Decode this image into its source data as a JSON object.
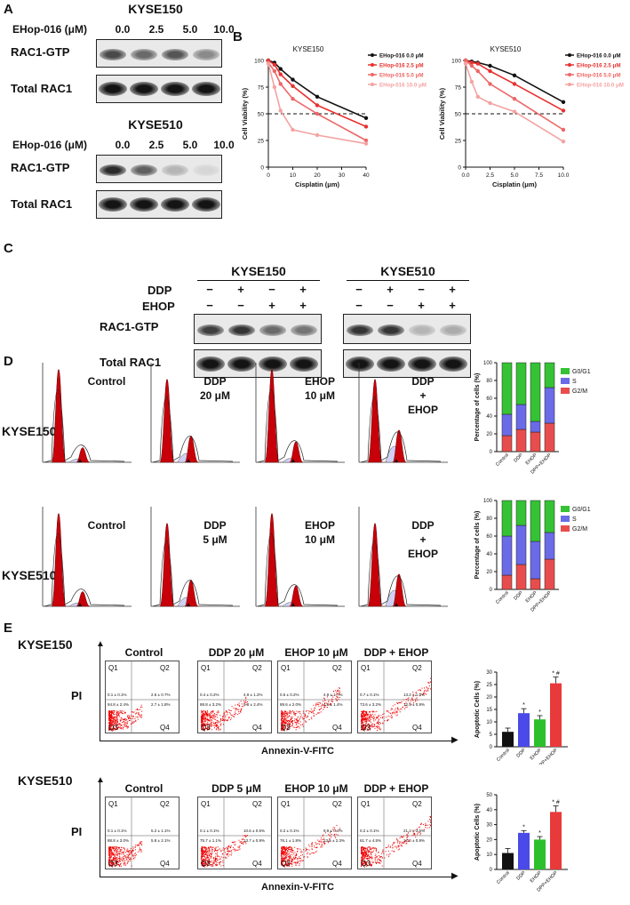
{
  "panels": {
    "A": "A",
    "B": "B",
    "C": "C",
    "D": "D",
    "E": "E"
  },
  "panelA": {
    "kyse150": {
      "title": "KYSE150",
      "dose_label": "EHop-016 (μM)",
      "doses": [
        "0.0",
        "2.5",
        "5.0",
        "10.0"
      ],
      "rows": [
        "RAC1-GTP",
        "Total RAC1"
      ],
      "gtp_intensity": [
        0.75,
        0.6,
        0.7,
        0.45
      ],
      "total_intensity": [
        1,
        1,
        1,
        1
      ]
    },
    "kyse510": {
      "title": "KYSE510",
      "dose_label": "EHop-016 (μM)",
      "doses": [
        "0.0",
        "2.5",
        "5.0",
        "10.0"
      ],
      "rows": [
        "RAC1-GTP",
        "Total RAC1"
      ],
      "gtp_intensity": [
        0.9,
        0.65,
        0.25,
        0.1
      ],
      "total_intensity": [
        1,
        1,
        1,
        1
      ]
    }
  },
  "chart_data": [
    {
      "type": "line",
      "title": "KYSE150",
      "xlabel": "Cisplatin (μm)",
      "ylabel": "Cell Viability (%)",
      "xlim": [
        0,
        40
      ],
      "ylim": [
        0,
        100
      ],
      "xticks": [
        "0",
        "10",
        "20",
        "30",
        "40"
      ],
      "yticks": [
        "0",
        "25",
        "50",
        "75",
        "100"
      ],
      "reference_line": 50,
      "legend": "top-right",
      "x": [
        0,
        2.5,
        5,
        10,
        20,
        40
      ],
      "series": [
        {
          "name": "EHop-016 0.0 μM",
          "color": "#111111",
          "values": [
            100,
            98,
            92,
            82,
            66,
            46
          ]
        },
        {
          "name": "EHop-016 2.5 μM",
          "color": "#e8312f",
          "values": [
            100,
            96,
            87,
            76,
            58,
            38
          ]
        },
        {
          "name": "EHop-016 5.0 μM",
          "color": "#ee6666",
          "values": [
            98,
            90,
            78,
            64,
            50,
            25
          ]
        },
        {
          "name": "EHop-016 10.0 μM",
          "color": "#f4a2a2",
          "values": [
            97,
            75,
            53,
            35,
            30,
            22
          ]
        }
      ]
    },
    {
      "type": "line",
      "title": "KYSE510",
      "xlabel": "Cisplatin (μm)",
      "ylabel": "Cell Viability (%)",
      "xlim": [
        0,
        10
      ],
      "ylim": [
        0,
        100
      ],
      "xticks": [
        "0.0",
        "2.5",
        "5.0",
        "7.5",
        "10.0"
      ],
      "yticks": [
        "0",
        "25",
        "50",
        "75",
        "100"
      ],
      "reference_line": 50,
      "legend": "top-right",
      "x": [
        0,
        0.625,
        1.25,
        2.5,
        5,
        10
      ],
      "series": [
        {
          "name": "EHop-016 0.0 μM",
          "color": "#111111",
          "values": [
            100,
            99,
            98,
            95,
            86,
            61
          ]
        },
        {
          "name": "EHop-016 2.5 μM",
          "color": "#e8312f",
          "values": [
            100,
            98,
            97,
            90,
            78,
            53
          ]
        },
        {
          "name": "EHop-016 5.0 μM",
          "color": "#ee6666",
          "values": [
            100,
            95,
            90,
            78,
            64,
            35
          ]
        },
        {
          "name": "EHop-016 10.0 μM",
          "color": "#f4a2a2",
          "values": [
            97,
            80,
            66,
            60,
            52,
            24
          ]
        }
      ]
    },
    {
      "type": "bar",
      "stacked": true,
      "title": "",
      "xlabel": "",
      "ylabel": "Percentage of cells (%)",
      "categories": [
        "Control",
        "DDP",
        "EHOP",
        "DPP+EHOP"
      ],
      "ylim": [
        0,
        100
      ],
      "yticks": [
        "0",
        "20",
        "40",
        "60",
        "80",
        "100"
      ],
      "legend": "right",
      "series": [
        {
          "name": "G2/M",
          "color": "#e84d4d",
          "values": [
            18,
            25,
            22,
            32
          ]
        },
        {
          "name": "S",
          "color": "#6b6be8",
          "values": [
            24,
            28,
            12,
            40
          ]
        },
        {
          "name": "G0/G1",
          "color": "#35c235",
          "values": [
            58,
            47,
            66,
            28
          ]
        }
      ]
    },
    {
      "type": "bar",
      "stacked": true,
      "title": "",
      "xlabel": "",
      "ylabel": "Percentage of cells (%)",
      "categories": [
        "Control",
        "DDP",
        "EHOP",
        "DPP+EHOP"
      ],
      "ylim": [
        0,
        100
      ],
      "yticks": [
        "0",
        "20",
        "40",
        "60",
        "80",
        "100"
      ],
      "legend": "right",
      "series": [
        {
          "name": "G2/M",
          "color": "#e84d4d",
          "values": [
            16,
            28,
            12,
            34
          ]
        },
        {
          "name": "S",
          "color": "#6b6be8",
          "values": [
            44,
            44,
            42,
            30
          ]
        },
        {
          "name": "G0/G1",
          "color": "#35c235",
          "values": [
            40,
            28,
            46,
            36
          ]
        }
      ]
    },
    {
      "type": "bar",
      "title": "",
      "xlabel": "",
      "ylabel": "Apoptotic Cells (%)",
      "categories": [
        "Control",
        "DDP",
        "EHOP",
        "DPP+EHOP"
      ],
      "ylim": [
        0,
        30
      ],
      "yticks": [
        "0",
        "5",
        "10",
        "15",
        "20",
        "25",
        "30"
      ],
      "colors": [
        "#111111",
        "#4a4ae8",
        "#2cc12c",
        "#e83a3a"
      ],
      "values": [
        6,
        13.5,
        11,
        25.5
      ],
      "errors": [
        1.5,
        1.8,
        1.5,
        2.5
      ],
      "significance": [
        "",
        "*",
        "*",
        "* #"
      ]
    },
    {
      "type": "bar",
      "title": "",
      "xlabel": "",
      "ylabel": "Apoptotic Cells (%)",
      "categories": [
        "Control",
        "DDP",
        "EHOP",
        "DPP+EHOP"
      ],
      "ylim": [
        0,
        50
      ],
      "yticks": [
        "0",
        "10",
        "20",
        "30",
        "40",
        "50"
      ],
      "colors": [
        "#111111",
        "#4a4ae8",
        "#2cc12c",
        "#e83a3a"
      ],
      "values": [
        11,
        24.5,
        20,
        38.5
      ],
      "errors": [
        3,
        1.5,
        2,
        4
      ],
      "significance": [
        "",
        "*",
        "*",
        "* #"
      ]
    }
  ],
  "panelC": {
    "rows": [
      "DDP",
      "EHOP"
    ],
    "blot_rows": [
      "RAC1-GTP",
      "Total RAC1"
    ],
    "groups": [
      {
        "title": "KYSE150",
        "ddp": [
          "−",
          "+",
          "−",
          "+"
        ],
        "ehop": [
          "−",
          "−",
          "+",
          "+"
        ],
        "gtp": [
          0.8,
          0.85,
          0.6,
          0.55
        ]
      },
      {
        "title": "KYSE510",
        "ddp": [
          "−",
          "+",
          "−",
          "+"
        ],
        "ehop": [
          "−",
          "−",
          "+",
          "+"
        ],
        "gtp": [
          0.85,
          0.85,
          0.25,
          0.3
        ]
      }
    ]
  },
  "panelD": {
    "rows": [
      {
        "cell": "KYSE150",
        "labels": [
          "Control",
          "DDP\n20 μM",
          "EHOP\n10 μM",
          "DDP\n+\nEHOP"
        ]
      },
      {
        "cell": "KYSE510",
        "labels": [
          "Control",
          "DDP\n5 μM",
          "EHOP\n10 μM",
          "DDP\n+\nEHOP"
        ]
      }
    ]
  },
  "panelE": {
    "xlabel": "Annexin-V-FITC",
    "ylabel": "PI",
    "quadrants": [
      "Q1",
      "Q2",
      "Q3",
      "Q4"
    ],
    "rows": [
      {
        "cell": "KYSE150",
        "titles": [
          "Control",
          "DDP 20 μM",
          "EHOP 10 μM",
          "DDP + EHOP"
        ],
        "stats": [
          [
            "0.1 ± 0.1%",
            "2.5 ± 0.7%",
            "94.8 ± 2.4%",
            "2.7 ± 1.8%"
          ],
          [
            "0.4 ± 0.2%",
            "4.9 ± 1.2%",
            "88.8 ± 3.2%",
            "5.8 ± 2.4%"
          ],
          [
            "0.5 ± 0.2%",
            "4.9 ± 1.7%",
            "89.6 ± 2.0%",
            "4.8 ± 1.4%"
          ],
          [
            "0.7 ± 0.1%",
            "13.2 ± 1.3%",
            "73.6 ± 3.2%",
            "12.5 ± 0.9%"
          ]
        ]
      },
      {
        "cell": "KYSE510",
        "titles": [
          "Control",
          "DDP 5 μM",
          "EHOP 10 μM",
          "DDP + EHOP"
        ],
        "stats": [
          [
            "0.1 ± 0.1%",
            "5.2 ± 1.1%",
            "88.8 ± 3.0%",
            "5.8 ± 2.1%"
          ],
          [
            "0.1 ± 0.1%",
            "10.6 ± 0.5%",
            "75.7 ± 1.1%",
            "13.7 ± 0.9%"
          ],
          [
            "0.2 ± 0.1%",
            "9.9 ± 0.4%",
            "76.1 ± 1.8%",
            "13.5 ± 2.3%"
          ],
          [
            "0.2 ± 0.1%",
            "21.1 ± 3.5%",
            "61.7 ± 4.5%",
            "17.0 ± 0.9%"
          ]
        ]
      }
    ]
  }
}
